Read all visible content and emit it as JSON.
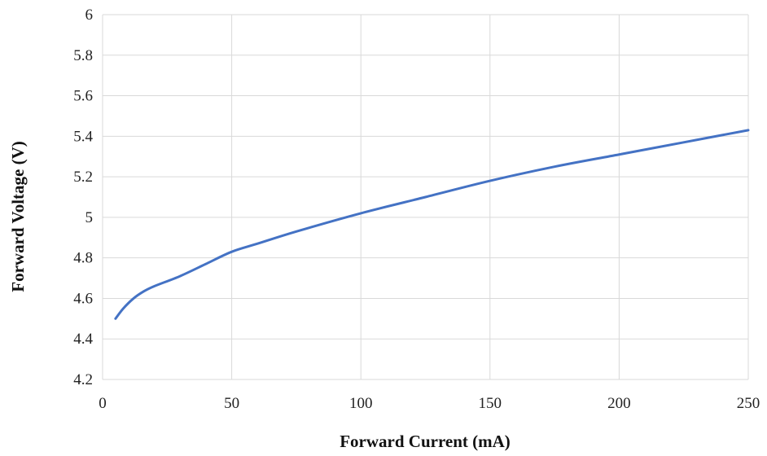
{
  "chart_data": {
    "type": "line",
    "title": "",
    "xlabel": "Forward Current (mA)",
    "ylabel": "Forward Voltage (V)",
    "xlim": [
      0,
      250
    ],
    "ylim": [
      4.2,
      6
    ],
    "xticks": [
      0,
      50,
      100,
      150,
      200,
      250
    ],
    "yticks": [
      4.2,
      4.4,
      4.6,
      4.8,
      5,
      5.2,
      5.4,
      5.6,
      5.8,
      6
    ],
    "x_tick_labels": [
      "0",
      "50",
      "100",
      "150",
      "200",
      "250"
    ],
    "y_tick_labels": [
      "4.2",
      "4.4",
      "4.6",
      "4.8",
      "5",
      "5.2",
      "5.4",
      "5.6",
      "5.8",
      "6"
    ],
    "grid": true,
    "legend": "none",
    "series": [
      {
        "color": "#4472c4",
        "x": [
          5,
          8,
          12,
          16,
          20,
          30,
          40,
          50,
          60,
          75,
          100,
          125,
          150,
          175,
          200,
          225,
          250
        ],
        "y": [
          4.5,
          4.55,
          4.6,
          4.635,
          4.66,
          4.71,
          4.77,
          4.83,
          4.87,
          4.93,
          5.02,
          5.1,
          5.18,
          5.25,
          5.31,
          5.37,
          5.43
        ]
      }
    ]
  }
}
